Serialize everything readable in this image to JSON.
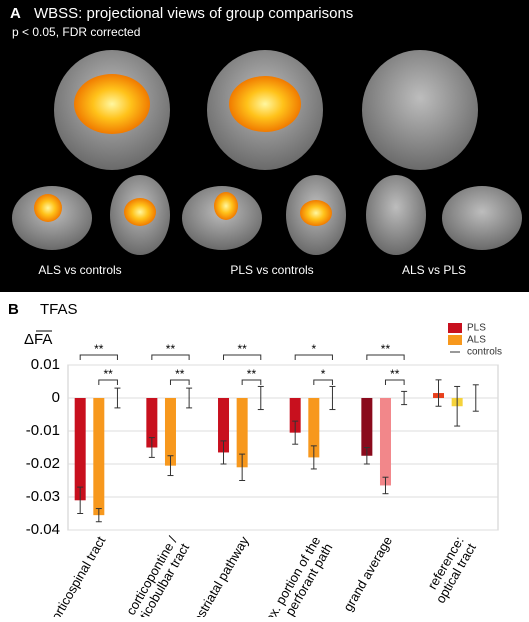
{
  "panel_a": {
    "letter": "A",
    "title": "WBSS: projectional views of group comparisons",
    "subtitle": "p < 0.05, FDR corrected",
    "captions": [
      "ALS vs controls",
      "PLS vs controls",
      "ALS vs PLS"
    ]
  },
  "chart_data": {
    "type": "bar",
    "letter": "B",
    "title": "TFAS",
    "y_label": "ΔFA",
    "categories": [
      [
        "corticospinal tract"
      ],
      [
        "corticopontine /",
        "corticobulbar tract"
      ],
      [
        "corticostriatal pathway"
      ],
      [
        "prox. portion of the",
        "perforant path"
      ],
      [
        "grand average"
      ],
      [
        "reference:",
        "optical tract"
      ]
    ],
    "series": [
      {
        "name": "PLS",
        "color": "#c8101e",
        "colors": [
          "#c8101e",
          "#c8101e",
          "#c8101e",
          "#c8101e",
          "#8a0a1c",
          "#e8401c"
        ],
        "values": [
          -0.031,
          -0.015,
          -0.0165,
          -0.0105,
          -0.0175,
          0.0015
        ],
        "errors": [
          0.004,
          0.003,
          0.0035,
          0.0035,
          0.0025,
          0.004
        ]
      },
      {
        "name": "ALS",
        "color": "#f7981d",
        "colors": [
          "#f7981d",
          "#f7981d",
          "#f7981d",
          "#f7981d",
          "#f2878a",
          "#f5d23a"
        ],
        "values": [
          -0.0355,
          -0.0205,
          -0.021,
          -0.018,
          -0.0265,
          -0.0025
        ],
        "errors": [
          0.002,
          0.003,
          0.004,
          0.0035,
          0.0025,
          0.006
        ]
      },
      {
        "name": "controls",
        "color": "#333333",
        "values": [
          0,
          0,
          0,
          0,
          0,
          0
        ],
        "errors": [
          0.003,
          0.003,
          0.0035,
          0.0035,
          0.002,
          0.004
        ]
      }
    ],
    "significance": [
      [
        "**",
        "**"
      ],
      [
        "**",
        "**"
      ],
      [
        "**",
        "**"
      ],
      [
        "*",
        "*"
      ],
      [
        "**",
        "**"
      ],
      null
    ],
    "ylim": [
      -0.04,
      0.01
    ],
    "yticks": [
      -0.04,
      -0.03,
      -0.02,
      -0.01,
      0,
      0.01
    ],
    "grid": true
  }
}
